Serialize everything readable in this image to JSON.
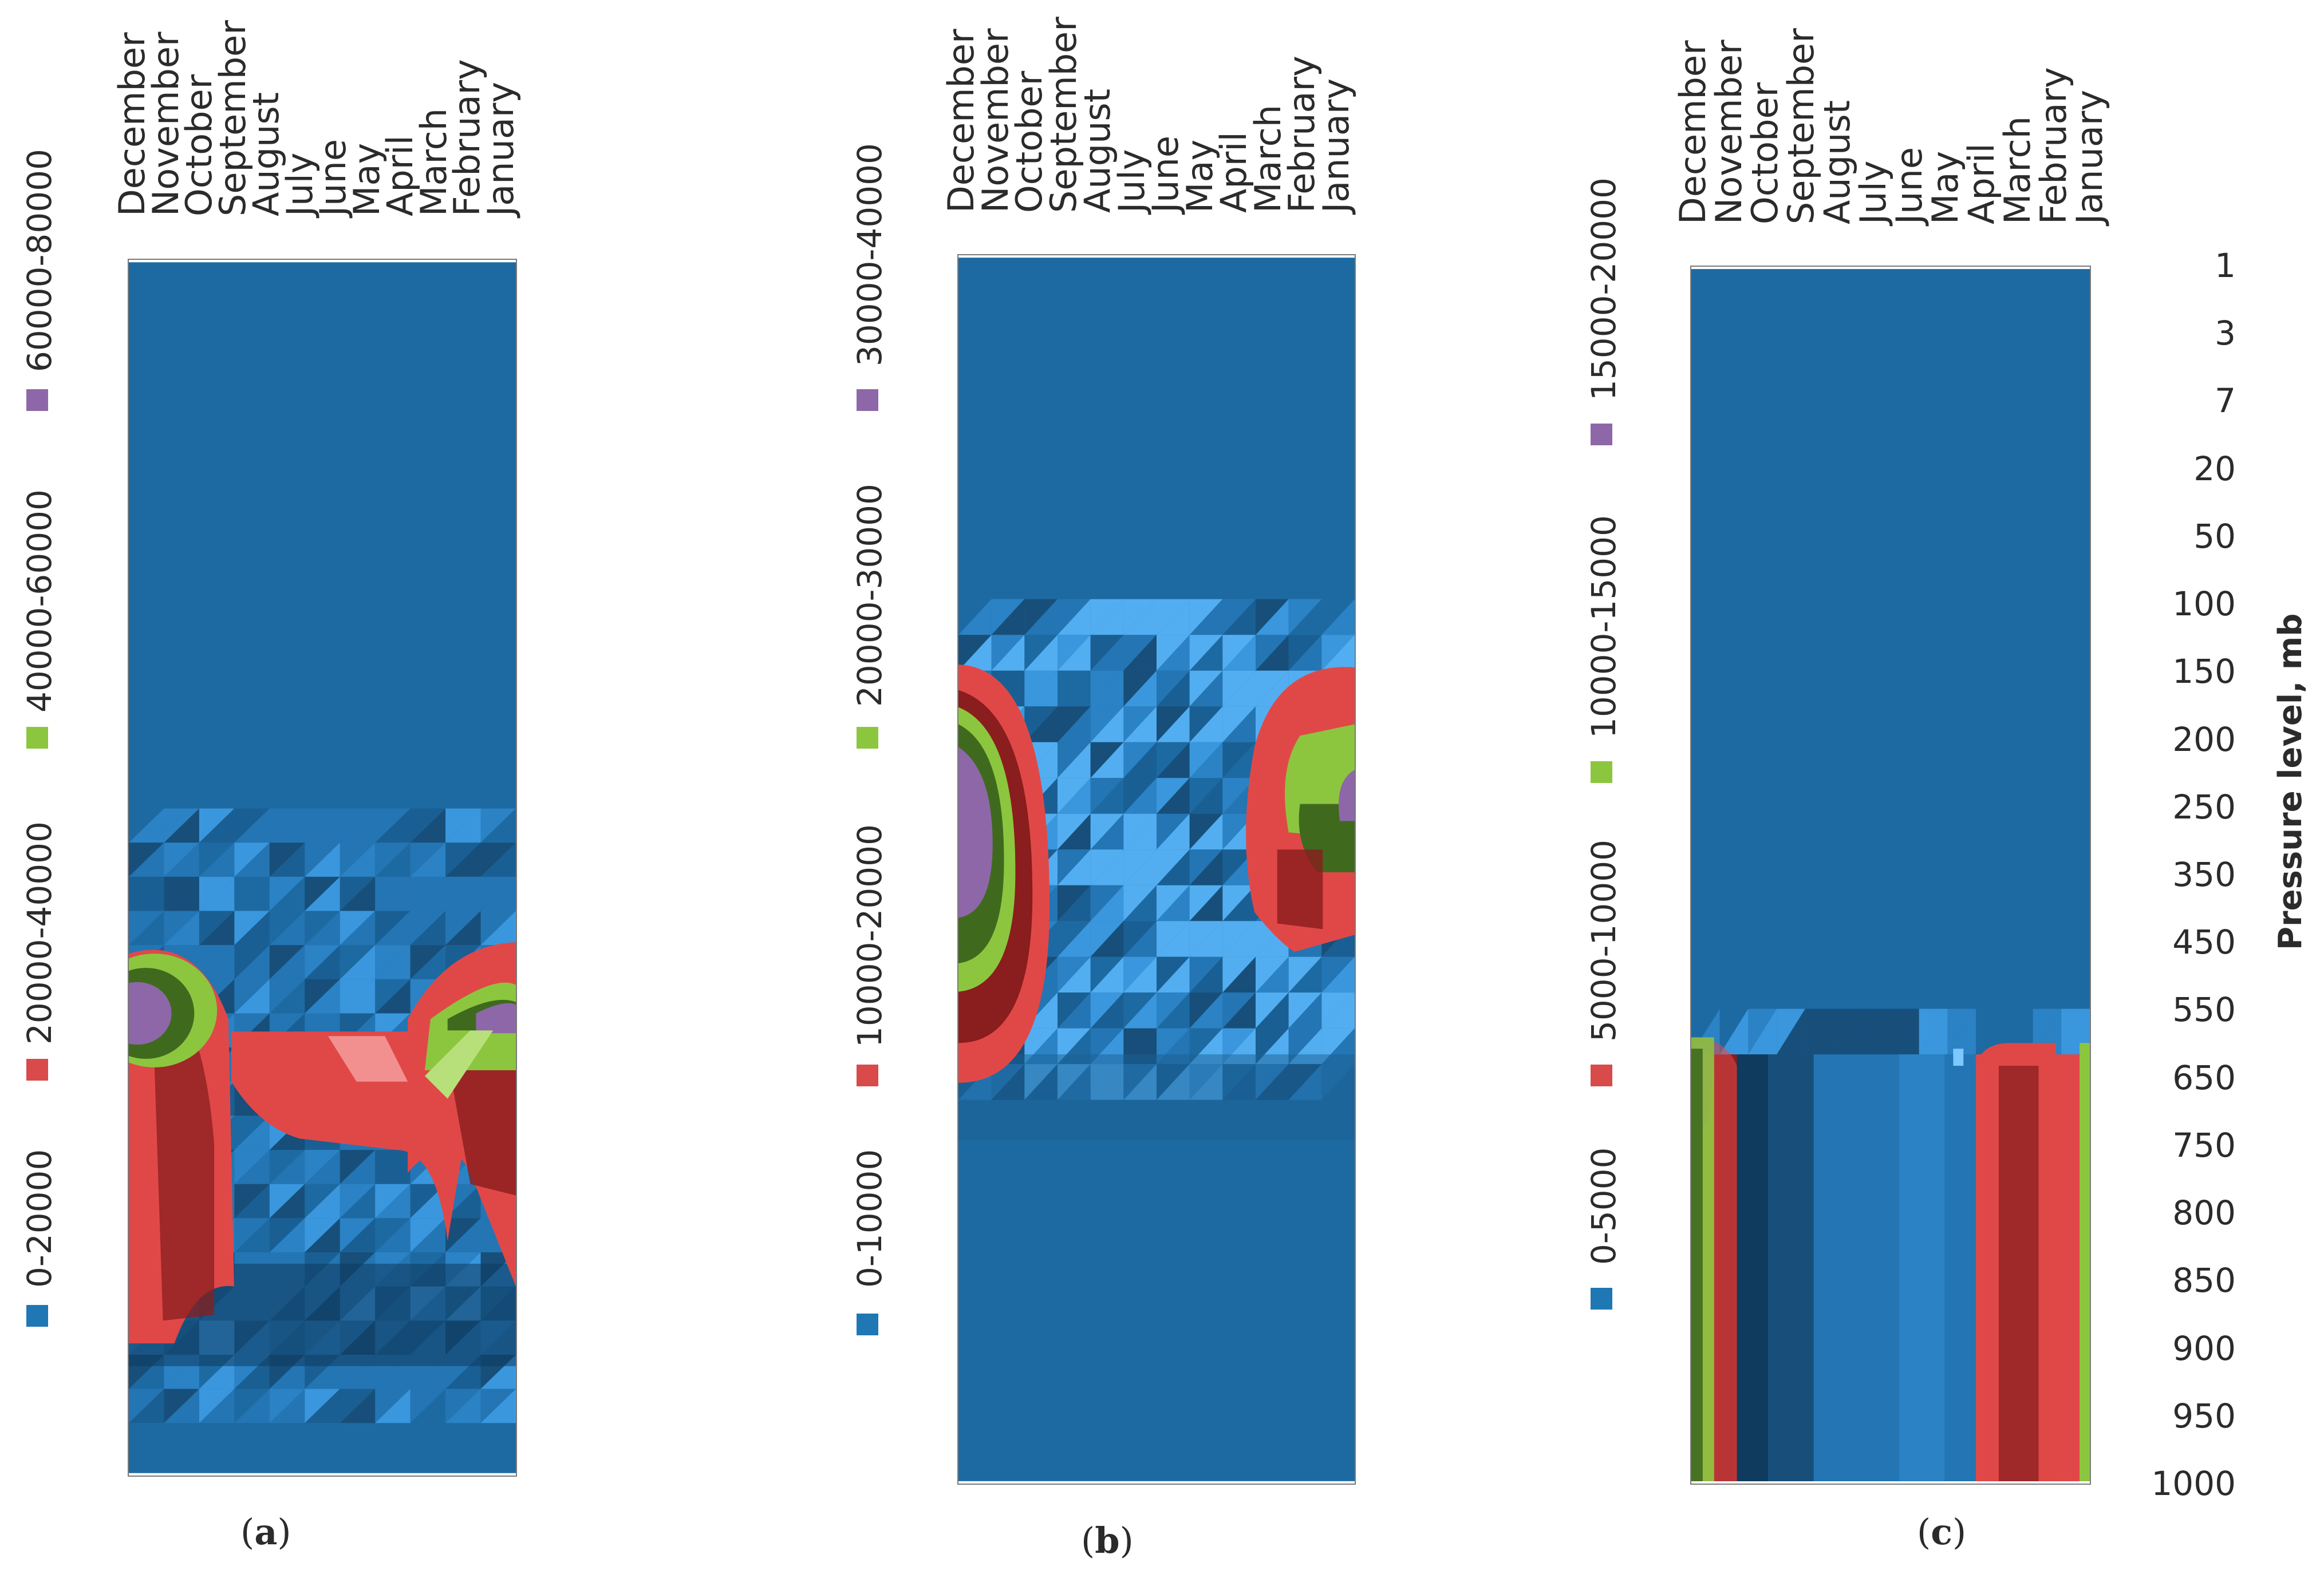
{
  "chart_data": [
    {
      "type": "heatmap",
      "panel": "a",
      "caption": "a",
      "months": [
        "December",
        "November",
        "October",
        "September",
        "August",
        "July",
        "June",
        "May",
        "April",
        "March",
        "February",
        "January"
      ],
      "legend": [
        {
          "label": "0-20000",
          "color": "#1f77b4"
        },
        {
          "label": "20000-40000",
          "color": "#d94a4a"
        },
        {
          "label": "40000-60000",
          "color": "#8cc63f"
        },
        {
          "label": "60000-80000",
          "color": "#8e67a9"
        }
      ],
      "levels": [
        "0-20000",
        "0-20000",
        "0-20000",
        "0-20000",
        "0-20000",
        "0-20000",
        "0-20000",
        "0-20000",
        "0-20000",
        "20000-40000",
        "40000-60000",
        "60000-80000"
      ]
    },
    {
      "type": "heatmap",
      "panel": "b",
      "caption": "b",
      "months": [
        "December",
        "November",
        "October",
        "September",
        "August",
        "July",
        "June",
        "May",
        "April",
        "March",
        "February",
        "January"
      ],
      "legend": [
        {
          "label": "0-10000",
          "color": "#1f77b4"
        },
        {
          "label": "10000-20000",
          "color": "#d94a4a"
        },
        {
          "label": "20000-30000",
          "color": "#8cc63f"
        },
        {
          "label": "30000-40000",
          "color": "#8e67a9"
        }
      ]
    },
    {
      "type": "heatmap",
      "panel": "c",
      "caption": "c",
      "months": [
        "December",
        "November",
        "October",
        "September",
        "August",
        "July",
        "June",
        "May",
        "April",
        "March",
        "February",
        "January"
      ],
      "legend": [
        {
          "label": "0-5000",
          "color": "#1f77b4"
        },
        {
          "label": "5000-10000",
          "color": "#d94a4a"
        },
        {
          "label": "10000-15000",
          "color": "#8cc63f"
        },
        {
          "label": "15000-20000",
          "color": "#8e67a9"
        }
      ],
      "pressure_levels": [
        "1",
        "3",
        "7",
        "20",
        "50",
        "100",
        "150",
        "200",
        "250",
        "350",
        "450",
        "550",
        "650",
        "750",
        "800",
        "850",
        "900",
        "950",
        "1000"
      ],
      "ylabel": "Pressure level, mb"
    }
  ],
  "captions": {
    "a": "a",
    "b": "b",
    "c": "c"
  },
  "colors": {
    "base_blue": "#1d6aa3",
    "light_blue": "#3a97dd",
    "dark_blue": "#0f3b5e",
    "red": "#e04848",
    "dark_red": "#8a1d1d",
    "green": "#8cc63f",
    "dark_green": "#3f6a1e",
    "purple": "#8e67a9",
    "dark_purple": "#4a2d5e"
  }
}
